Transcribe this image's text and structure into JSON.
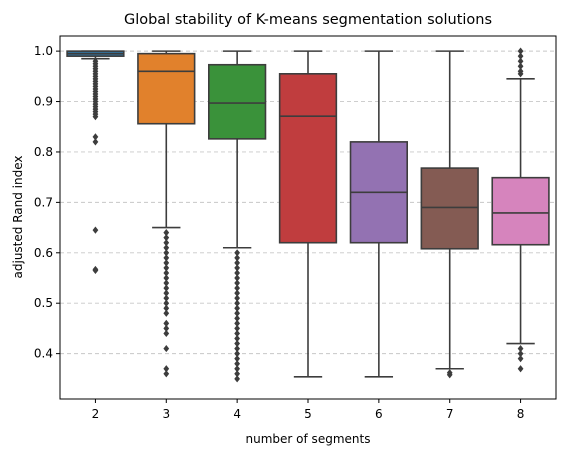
{
  "chart_data": {
    "type": "box",
    "title": "Global stability of K-means segmentation solutions",
    "xlabel": "number of segments",
    "ylabel": "adjusted Rand index",
    "ylim": [
      0.31,
      1.03
    ],
    "yticks": [
      "0.4",
      "0.5",
      "0.6",
      "0.7",
      "0.8",
      "0.9",
      "1.0"
    ],
    "ytick_values": [
      0.4,
      0.5,
      0.6,
      0.7,
      0.8,
      0.9,
      1.0
    ],
    "grid": "horizontal dashed",
    "categories": [
      "2",
      "3",
      "4",
      "5",
      "6",
      "7",
      "8"
    ],
    "boxes": [
      {
        "category": "2",
        "whisker_low": 0.985,
        "q1": 0.99,
        "median": 0.995,
        "q3": 1.0,
        "whisker_high": 1.0,
        "color": "#3274a1",
        "outliers": [
          0.98,
          0.975,
          0.97,
          0.965,
          0.96,
          0.955,
          0.95,
          0.945,
          0.94,
          0.935,
          0.93,
          0.925,
          0.92,
          0.915,
          0.91,
          0.905,
          0.9,
          0.895,
          0.89,
          0.885,
          0.88,
          0.875,
          0.87,
          0.83,
          0.82,
          0.645,
          0.567,
          0.565
        ]
      },
      {
        "category": "3",
        "whisker_low": 0.65,
        "q1": 0.856,
        "median": 0.96,
        "q3": 0.995,
        "whisker_high": 1.0,
        "color": "#e1812c",
        "outliers": [
          0.64,
          0.63,
          0.62,
          0.61,
          0.6,
          0.59,
          0.58,
          0.57,
          0.56,
          0.55,
          0.54,
          0.53,
          0.52,
          0.51,
          0.5,
          0.49,
          0.48,
          0.46,
          0.45,
          0.44,
          0.41,
          0.37,
          0.36
        ]
      },
      {
        "category": "4",
        "whisker_low": 0.61,
        "q1": 0.826,
        "median": 0.897,
        "q3": 0.973,
        "whisker_high": 1.0,
        "color": "#3a923a",
        "outliers": [
          0.6,
          0.59,
          0.58,
          0.57,
          0.56,
          0.55,
          0.54,
          0.53,
          0.52,
          0.51,
          0.5,
          0.49,
          0.48,
          0.47,
          0.46,
          0.45,
          0.44,
          0.43,
          0.42,
          0.41,
          0.4,
          0.39,
          0.38,
          0.37,
          0.36,
          0.35
        ]
      },
      {
        "category": "5",
        "whisker_low": 0.354,
        "q1": 0.62,
        "median": 0.871,
        "q3": 0.955,
        "whisker_high": 1.0,
        "color": "#c03d3e",
        "outliers": []
      },
      {
        "category": "6",
        "whisker_low": 0.354,
        "q1": 0.62,
        "median": 0.72,
        "q3": 0.82,
        "whisker_high": 1.0,
        "color": "#9372b2",
        "outliers": []
      },
      {
        "category": "7",
        "whisker_low": 0.37,
        "q1": 0.608,
        "median": 0.69,
        "q3": 0.768,
        "whisker_high": 1.0,
        "color": "#845b53",
        "outliers": [
          0.362,
          0.358
        ]
      },
      {
        "category": "8",
        "whisker_low": 0.42,
        "q1": 0.616,
        "median": 0.679,
        "q3": 0.749,
        "whisker_high": 0.945,
        "color": "#d684bd",
        "outliers": [
          1.0,
          0.99,
          0.98,
          0.97,
          0.96,
          0.955,
          0.41,
          0.4,
          0.39,
          0.37
        ]
      }
    ]
  }
}
